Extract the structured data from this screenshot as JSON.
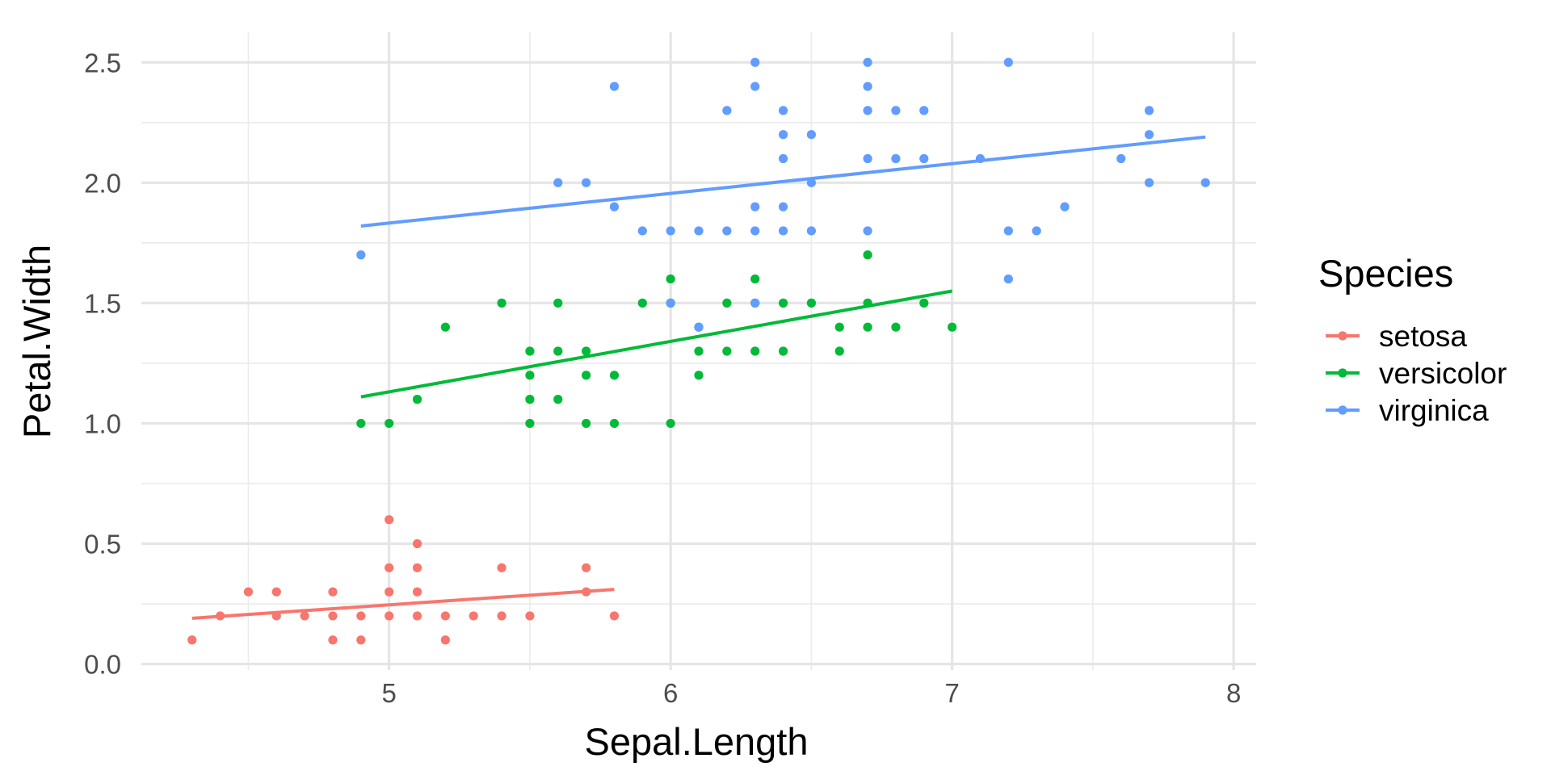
{
  "chart_data": {
    "type": "scatter",
    "xlabel": "Sepal.Length",
    "ylabel": "Petal.Width",
    "xlim": [
      4.12,
      8.08
    ],
    "ylim": [
      -0.025,
      2.625
    ],
    "x_ticks": [
      5,
      6,
      7,
      8
    ],
    "x_tick_labels": [
      "5",
      "6",
      "7",
      "8"
    ],
    "y_ticks": [
      0,
      0.5,
      1,
      1.5,
      2,
      2.5
    ],
    "y_tick_labels": [
      "0.0",
      "0.5",
      "1.0",
      "1.5",
      "2.0",
      "2.5"
    ],
    "grid": true,
    "legend": {
      "title": "Species",
      "position": "right"
    },
    "series": [
      {
        "name": "setosa",
        "color": "#F8766D",
        "fit_line": {
          "x": [
            4.3,
            5.8
          ],
          "y": [
            0.19,
            0.31
          ]
        },
        "points": [
          [
            4.3,
            0.1
          ],
          [
            4.4,
            0.2
          ],
          [
            4.5,
            0.3
          ],
          [
            4.6,
            0.3
          ],
          [
            4.6,
            0.2
          ],
          [
            4.7,
            0.2
          ],
          [
            4.8,
            0.3
          ],
          [
            4.8,
            0.2
          ],
          [
            4.8,
            0.1
          ],
          [
            4.9,
            0.2
          ],
          [
            4.9,
            0.1
          ],
          [
            5.0,
            0.6
          ],
          [
            5.0,
            0.4
          ],
          [
            5.0,
            0.3
          ],
          [
            5.0,
            0.2
          ],
          [
            5.1,
            0.5
          ],
          [
            5.1,
            0.4
          ],
          [
            5.1,
            0.3
          ],
          [
            5.1,
            0.2
          ],
          [
            5.2,
            0.2
          ],
          [
            5.2,
            0.1
          ],
          [
            5.3,
            0.2
          ],
          [
            5.4,
            0.4
          ],
          [
            5.4,
            0.2
          ],
          [
            5.5,
            0.2
          ],
          [
            5.7,
            0.4
          ],
          [
            5.7,
            0.3
          ],
          [
            5.8,
            0.2
          ]
        ]
      },
      {
        "name": "versicolor",
        "color": "#00BA38",
        "fit_line": {
          "x": [
            4.9,
            7.0
          ],
          "y": [
            1.11,
            1.55
          ]
        },
        "points": [
          [
            4.9,
            1.0
          ],
          [
            5.0,
            1.0
          ],
          [
            5.1,
            1.1
          ],
          [
            5.2,
            1.4
          ],
          [
            5.4,
            1.5
          ],
          [
            5.5,
            1.3
          ],
          [
            5.5,
            1.2
          ],
          [
            5.5,
            1.1
          ],
          [
            5.5,
            1.0
          ],
          [
            5.6,
            1.5
          ],
          [
            5.6,
            1.3
          ],
          [
            5.6,
            1.1
          ],
          [
            5.7,
            1.3
          ],
          [
            5.7,
            1.2
          ],
          [
            5.7,
            1.0
          ],
          [
            5.8,
            1.2
          ],
          [
            5.8,
            1.0
          ],
          [
            5.9,
            1.5
          ],
          [
            6.0,
            1.6
          ],
          [
            6.0,
            1.5
          ],
          [
            6.0,
            1.0
          ],
          [
            6.1,
            1.4
          ],
          [
            6.1,
            1.3
          ],
          [
            6.1,
            1.2
          ],
          [
            6.2,
            1.5
          ],
          [
            6.2,
            1.3
          ],
          [
            6.3,
            1.6
          ],
          [
            6.3,
            1.5
          ],
          [
            6.3,
            1.3
          ],
          [
            6.4,
            1.5
          ],
          [
            6.4,
            1.3
          ],
          [
            6.5,
            1.5
          ],
          [
            6.6,
            1.4
          ],
          [
            6.6,
            1.3
          ],
          [
            6.7,
            1.7
          ],
          [
            6.7,
            1.5
          ],
          [
            6.7,
            1.4
          ],
          [
            6.8,
            1.4
          ],
          [
            6.9,
            1.5
          ],
          [
            7.0,
            1.4
          ]
        ]
      },
      {
        "name": "virginica",
        "color": "#619CFF",
        "fit_line": {
          "x": [
            4.9,
            7.9
          ],
          "y": [
            1.82,
            2.19
          ]
        },
        "points": [
          [
            4.9,
            1.7
          ],
          [
            5.6,
            2.0
          ],
          [
            5.7,
            2.0
          ],
          [
            5.8,
            2.4
          ],
          [
            5.8,
            1.9
          ],
          [
            5.9,
            1.8
          ],
          [
            6.0,
            1.8
          ],
          [
            6.0,
            1.5
          ],
          [
            6.1,
            1.8
          ],
          [
            6.1,
            1.4
          ],
          [
            6.2,
            2.3
          ],
          [
            6.2,
            1.8
          ],
          [
            6.3,
            2.5
          ],
          [
            6.3,
            2.4
          ],
          [
            6.3,
            1.9
          ],
          [
            6.3,
            1.8
          ],
          [
            6.3,
            1.5
          ],
          [
            6.4,
            2.3
          ],
          [
            6.4,
            2.2
          ],
          [
            6.4,
            2.1
          ],
          [
            6.4,
            1.9
          ],
          [
            6.4,
            1.8
          ],
          [
            6.5,
            2.2
          ],
          [
            6.5,
            2.0
          ],
          [
            6.5,
            1.8
          ],
          [
            6.7,
            2.5
          ],
          [
            6.7,
            2.4
          ],
          [
            6.7,
            2.3
          ],
          [
            6.7,
            2.1
          ],
          [
            6.7,
            1.8
          ],
          [
            6.8,
            2.3
          ],
          [
            6.8,
            2.1
          ],
          [
            6.9,
            2.3
          ],
          [
            6.9,
            2.1
          ],
          [
            7.1,
            2.1
          ],
          [
            7.2,
            2.5
          ],
          [
            7.2,
            1.8
          ],
          [
            7.2,
            1.6
          ],
          [
            7.3,
            1.8
          ],
          [
            7.4,
            1.9
          ],
          [
            7.6,
            2.1
          ],
          [
            7.7,
            2.3
          ],
          [
            7.7,
            2.2
          ],
          [
            7.7,
            2.0
          ],
          [
            7.9,
            2.0
          ]
        ]
      }
    ]
  }
}
